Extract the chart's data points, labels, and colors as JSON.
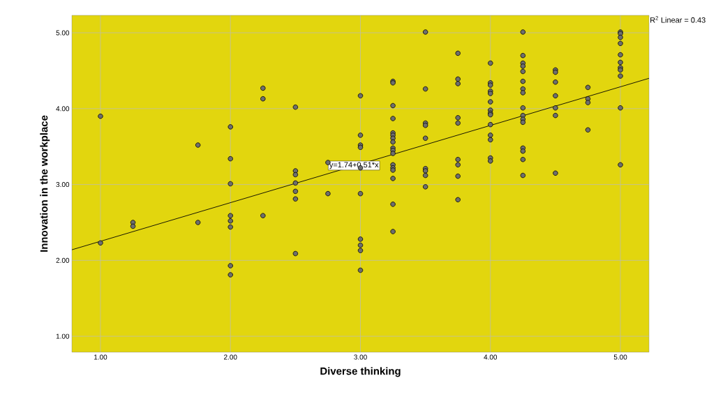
{
  "chart_data": {
    "type": "scatter",
    "xlabel": "Diverse thinking",
    "ylabel": "Innovation in the workplace",
    "xlim": [
      0.78,
      5.22
    ],
    "ylim": [
      0.79,
      5.23
    ],
    "xticks": [
      {
        "value": 1,
        "label": "1.00"
      },
      {
        "value": 2,
        "label": "2.00"
      },
      {
        "value": 3,
        "label": "3.00"
      },
      {
        "value": 4,
        "label": "4.00"
      },
      {
        "value": 5,
        "label": "5.00"
      }
    ],
    "yticks": [
      {
        "value": 1,
        "label": "1.00"
      },
      {
        "value": 2,
        "label": "2.00"
      },
      {
        "value": 3,
        "label": "3.00"
      },
      {
        "value": 4,
        "label": "4.00"
      },
      {
        "value": 5,
        "label": "5.00"
      }
    ],
    "grid": true,
    "series": [
      {
        "color": "#6e6e6e",
        "marker": "circle",
        "x": [
          1,
          1,
          1.25,
          1.25,
          1.75,
          1.75,
          2,
          2,
          2,
          2,
          2,
          2,
          2,
          2,
          2.25,
          2.25,
          2.25,
          2.5,
          2.5,
          2.5,
          2.5,
          2.5,
          2.5,
          2.5,
          2.75,
          2.75,
          3,
          3,
          3,
          3,
          3,
          3,
          3,
          3,
          3,
          3,
          3.25,
          3.25,
          3.25,
          3.25,
          3.25,
          3.25,
          3.25,
          3.25,
          3.25,
          3.25,
          3.25,
          3.25,
          3.25,
          3.25,
          3.25,
          3.25,
          3.25,
          3.5,
          3.5,
          3.5,
          3.5,
          3.5,
          3.5,
          3.5,
          3.5,
          3.5,
          3.75,
          3.75,
          3.75,
          3.75,
          3.75,
          3.75,
          3.75,
          3.75,
          3.75,
          4,
          4,
          4,
          4,
          4,
          4,
          4,
          4,
          4,
          4,
          4,
          4,
          4,
          4,
          4.25,
          4.25,
          4.25,
          4.25,
          4.25,
          4.25,
          4.25,
          4.25,
          4.25,
          4.25,
          4.25,
          4.25,
          4.25,
          4.25,
          4.25,
          4.25,
          4.5,
          4.5,
          4.5,
          4.5,
          4.5,
          4.5,
          4.5,
          4.75,
          4.75,
          4.75,
          4.75,
          5,
          5,
          5,
          5,
          5,
          5,
          5,
          5,
          5,
          5,
          5
        ],
        "values": [
          3.9,
          2.23,
          2.5,
          2.45,
          3.52,
          2.5,
          3.76,
          3.34,
          3.01,
          2.59,
          2.52,
          2.44,
          1.93,
          1.81,
          4.27,
          4.13,
          2.59,
          4.02,
          3.18,
          3.13,
          3.02,
          2.91,
          2.81,
          2.09,
          3.29,
          2.88,
          4.17,
          3.65,
          3.52,
          3.49,
          3.22,
          2.88,
          2.28,
          2.2,
          2.13,
          1.87,
          4.36,
          4.34,
          4.04,
          3.87,
          3.68,
          3.65,
          3.61,
          3.56,
          3.48,
          3.45,
          3.41,
          3.26,
          3.22,
          3.19,
          3.08,
          2.74,
          2.38,
          5.01,
          4.26,
          3.81,
          3.78,
          3.61,
          3.21,
          3.18,
          3.12,
          2.97,
          4.73,
          4.39,
          4.33,
          3.88,
          3.81,
          3.33,
          3.26,
          3.11,
          2.8,
          4.6,
          4.34,
          4.31,
          4.23,
          4.2,
          4.09,
          3.98,
          3.94,
          3.92,
          3.79,
          3.65,
          3.59,
          3.35,
          3.31,
          5.01,
          4.7,
          4.6,
          4.56,
          4.49,
          4.36,
          4.26,
          4.21,
          4.01,
          3.91,
          3.86,
          3.82,
          3.48,
          3.44,
          3.33,
          3.12,
          4.51,
          4.48,
          4.35,
          4.17,
          4.01,
          3.91,
          3.15,
          4.28,
          4.13,
          4.08,
          3.72,
          5.01,
          4.99,
          4.94,
          4.86,
          4.71,
          4.61,
          4.54,
          4.51,
          4.43,
          4.01,
          3.26
        ]
      },
      {
        "type": "line",
        "marker": "none",
        "color": "#000000",
        "x": [
          0.78,
          5.22
        ],
        "values": [
          2.14,
          4.4
        ]
      }
    ],
    "annotations": [
      {
        "text": "y=1.74+0.51*x",
        "x": 2.95,
        "y": 3.25
      },
      "R$^{2}$ Linear = 0.43"
    ]
  }
}
